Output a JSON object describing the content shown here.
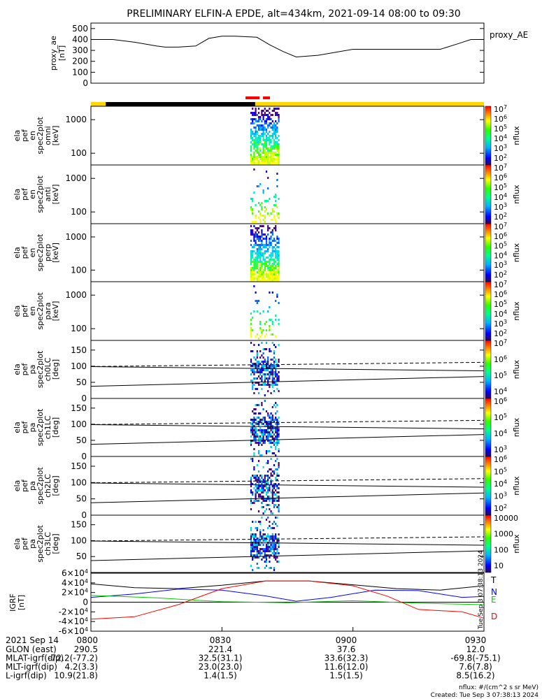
{
  "title": "PRELIMINARY ELFIN-A EPDE, alt=434km, 2021-09-14 08:00 to 09:30",
  "chart_data": [
    {
      "id": "proxy_ae",
      "type": "line",
      "ylabel": [
        "proxy_ae",
        "[nT]"
      ],
      "legend": "proxy_AE",
      "yticks": [
        "0",
        "100",
        "200",
        "300",
        "400",
        "500"
      ],
      "ylim": [
        0,
        550
      ],
      "x_minutes": [
        0,
        5,
        10,
        15,
        17,
        20,
        24,
        27,
        30,
        33,
        38,
        41,
        44,
        47,
        52,
        60,
        65,
        70,
        75,
        80,
        84,
        87,
        90
      ],
      "values": [
        400,
        400,
        375,
        340,
        330,
        330,
        340,
        410,
        430,
        430,
        420,
        350,
        290,
        240,
        255,
        310,
        310,
        310,
        310,
        310,
        360,
        400,
        400
      ]
    },
    {
      "id": "omni",
      "type": "heatmap",
      "ylabel": [
        "ela",
        "pef",
        "en",
        "spec2plot",
        "omni",
        "[keV]"
      ],
      "yticks": [
        "100",
        "1000"
      ],
      "colorbar": {
        "label": "nflux",
        "ticks": [
          "10^7",
          "10^6",
          "10^5",
          "10^4",
          "10^3",
          "10^2"
        ]
      }
    },
    {
      "id": "anti",
      "type": "heatmap",
      "ylabel": [
        "ela",
        "pef",
        "en",
        "spec2plot",
        "anti",
        "[keV]"
      ],
      "yticks": [
        "100",
        "1000"
      ],
      "colorbar": {
        "label": "nflux",
        "ticks": [
          "10^7",
          "10^6",
          "10^5",
          "10^4",
          "10^3",
          "10^2"
        ]
      }
    },
    {
      "id": "perp",
      "type": "heatmap",
      "ylabel": [
        "ela",
        "pef",
        "en",
        "spec2plot",
        "perp",
        "[keV]"
      ],
      "yticks": [
        "100",
        "1000"
      ],
      "colorbar": {
        "label": "nflux",
        "ticks": [
          "10^7",
          "10^6",
          "10^5",
          "10^4",
          "10^3",
          "10^2"
        ]
      }
    },
    {
      "id": "para",
      "type": "heatmap",
      "ylabel": [
        "ela",
        "pef",
        "en",
        "spec2plot",
        "para",
        "[keV]"
      ],
      "yticks": [
        "100",
        "1000"
      ],
      "colorbar": {
        "label": "nflux",
        "ticks": [
          "10^7",
          "10^6",
          "10^5",
          "10^4",
          "10^3",
          "10^2"
        ]
      }
    },
    {
      "id": "ch0LC",
      "type": "heatmap",
      "ylabel": [
        "ela",
        "pef",
        "pa",
        "spec2plot",
        "ch0LC",
        "[deg]"
      ],
      "yticks": [
        "0",
        "50",
        "100",
        "150"
      ],
      "colorbar": {
        "label": "nflux",
        "ticks": [
          "10^7",
          "10^6",
          "10^5",
          "10^4"
        ]
      }
    },
    {
      "id": "ch1LC",
      "type": "heatmap",
      "ylabel": [
        "ela",
        "pef",
        "pa",
        "spec2plot",
        "ch1LC",
        "[deg]"
      ],
      "yticks": [
        "0",
        "50",
        "100",
        "150"
      ],
      "colorbar": {
        "label": "nflux",
        "ticks": [
          "10^6",
          "10^5",
          "10^4",
          "10^3"
        ]
      }
    },
    {
      "id": "ch2LC",
      "type": "heatmap",
      "ylabel": [
        "ela",
        "pef",
        "pa",
        "spec2plot",
        "ch2LC",
        "[deg]"
      ],
      "yticks": [
        "0",
        "50",
        "100",
        "150"
      ],
      "colorbar": {
        "label": "nflux",
        "ticks": [
          "10^6",
          "10^5",
          "10^4",
          "10^3",
          "10^2"
        ]
      }
    },
    {
      "id": "ch3LC",
      "type": "heatmap",
      "ylabel": [
        "ela",
        "pef",
        "pa",
        "spec2plot",
        "ch3LC",
        "[deg]"
      ],
      "yticks": [
        "50",
        "100",
        "150"
      ],
      "colorbar": {
        "label": "nflux",
        "ticks": [
          "10000",
          "1000",
          "100",
          "10"
        ]
      }
    },
    {
      "id": "igrf",
      "type": "line",
      "ylabel": [
        "IGRF",
        "[nT]"
      ],
      "yticks": [
        "-6×10^4",
        "-4×10^4",
        "-2×10^4",
        "0",
        "2×10^4",
        "4×10^4",
        "6×10^4"
      ],
      "ylim": [
        -60000,
        60000
      ],
      "series": [
        {
          "name": "T",
          "color": "#000000",
          "x_minutes": [
            0,
            10,
            20,
            30,
            40,
            50,
            60,
            70,
            80,
            90
          ],
          "values": [
            38000,
            30000,
            28000,
            35000,
            44000,
            44000,
            36000,
            28000,
            25000,
            34000
          ]
        },
        {
          "name": "N",
          "color": "#0000ff",
          "x_minutes": [
            0,
            10,
            20,
            30,
            40,
            47,
            55,
            65,
            75,
            85,
            90
          ],
          "values": [
            10000,
            17000,
            27000,
            25000,
            13000,
            2000,
            10000,
            25000,
            24000,
            10000,
            12000
          ]
        },
        {
          "name": "E",
          "color": "#00cc00",
          "x_minutes": [
            0,
            15,
            30,
            45,
            60,
            75,
            90
          ],
          "values": [
            14000,
            9000,
            1000,
            -1000,
            3000,
            -2000,
            -5000
          ]
        },
        {
          "name": "D",
          "color": "#ff0000",
          "x_minutes": [
            0,
            10,
            20,
            30,
            40,
            50,
            60,
            68,
            75,
            85,
            90
          ],
          "values": [
            -35000,
            -30000,
            -5000,
            28000,
            44000,
            44000,
            34000,
            12000,
            -15000,
            -20000,
            -33000
          ]
        }
      ]
    }
  ],
  "time_axis": {
    "labels": [
      "0800",
      "0830",
      "0900",
      "0930"
    ]
  },
  "footer": {
    "date": "2021 Sep 14",
    "rows": [
      {
        "label": "GLON (east)",
        "values": [
          "290.5",
          "221.4",
          "37.6",
          "12.0"
        ]
      },
      {
        "label": "MLAT-igrf(dip)",
        "values": [
          "-72.2(-77.2)",
          "32.5(31.1)",
          "33.6(32.3)",
          "-69.8(-75.1)"
        ]
      },
      {
        "label": "MLT-igrf(dip)",
        "values": [
          "4.2(3.3)",
          "23.0(23.0)",
          "11.6(12.0)",
          "7.6(7.8)"
        ]
      },
      {
        "label": "L-igrf(dip)",
        "values": [
          "10.9(21.8)",
          "1.4(1.5)",
          "1.5(1.5)",
          "8.5(16.2)"
        ]
      }
    ],
    "units_note": "nflux: #/(cm^2 s sr MeV)",
    "created": "Created: Tue Sep  3 07:38:13 2024",
    "side_stamp": "Tue Sep  3 07:38:13 2024"
  },
  "colors": {
    "day_bar": "#ffd700",
    "night_bar": "#000000",
    "science_marker": "#ff0000"
  }
}
